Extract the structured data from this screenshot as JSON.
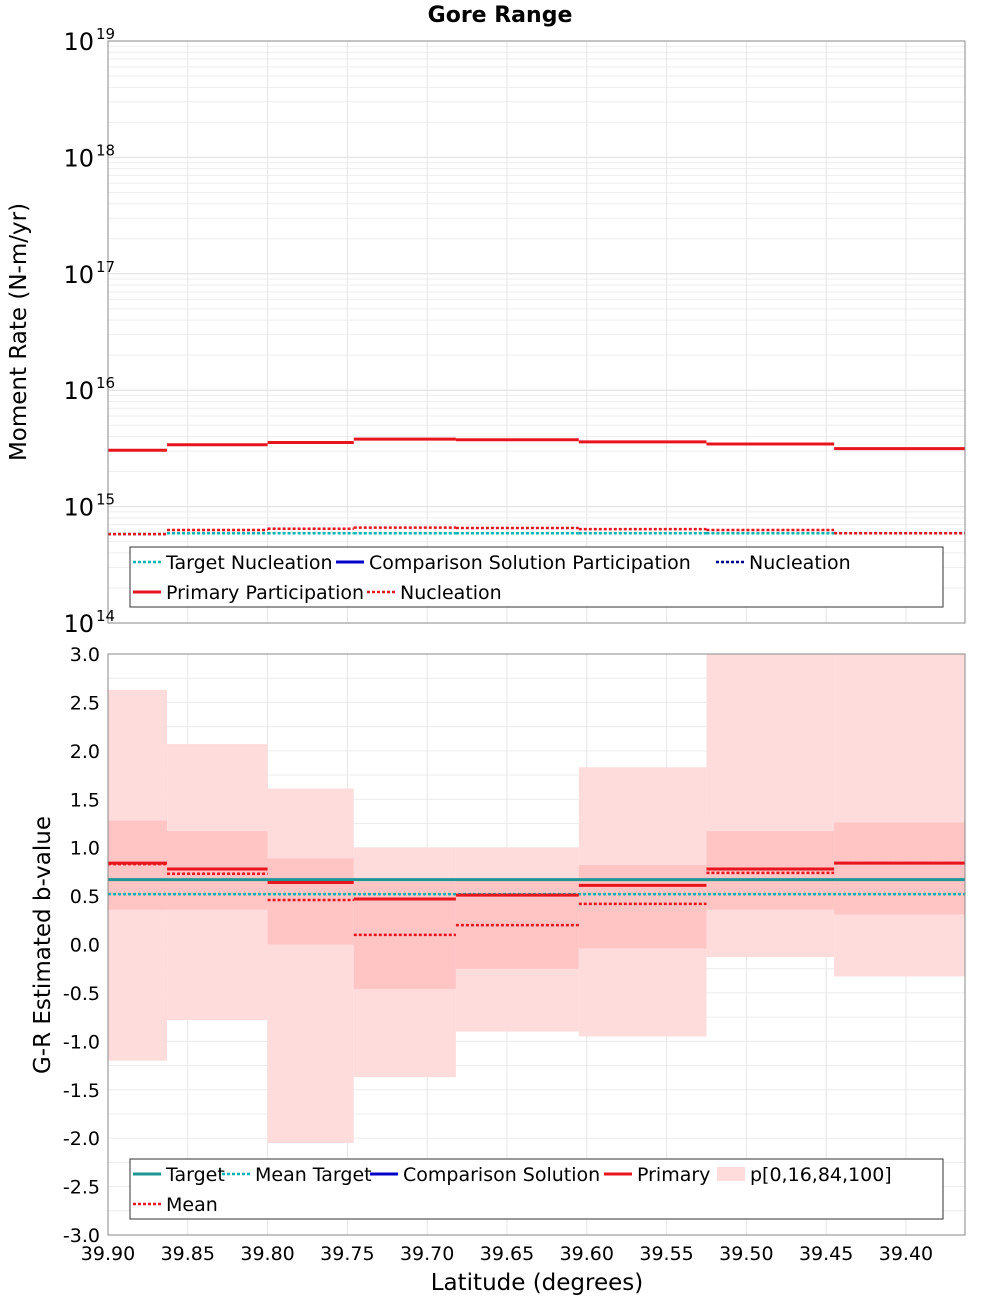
{
  "chart_data": [
    {
      "type": "line",
      "title": "Gore Range",
      "ylabel": "Moment Rate (N-m/yr)",
      "yscale": "log",
      "ylim": [
        100000000000000.0,
        1e+19
      ],
      "xlim": [
        39.9,
        39.363
      ],
      "x_reversed": true,
      "ytick_bases": [
        "10",
        "10",
        "10",
        "10",
        "10",
        "10"
      ],
      "ytick_exponents": [
        "19",
        "18",
        "17",
        "16",
        "15",
        "14"
      ],
      "grid": true,
      "legend_position": "bottom",
      "x_bin_edges": [
        39.9,
        39.863,
        39.8,
        39.746,
        39.682,
        39.605,
        39.525,
        39.445,
        39.363
      ],
      "series": [
        {
          "name": "Target Nucleation",
          "color": "#00b4b4",
          "style": "dotted",
          "values": [
            580000000000000.0,
            590000000000000.0,
            590000000000000.0,
            590000000000000.0,
            590000000000000.0,
            590000000000000.0,
            590000000000000.0,
            590000000000000.0
          ]
        },
        {
          "name": "Comparison Solution Participation",
          "color": "#0000cc",
          "style": "solid",
          "values": []
        },
        {
          "name": "Nucleation",
          "color": "#00008b",
          "style": "dotted",
          "values": []
        },
        {
          "name": "Primary Participation",
          "color": "#e8141e",
          "style": "solid",
          "values": [
            3050000000000000.0,
            3400000000000000.0,
            3550000000000000.0,
            3800000000000000.0,
            3750000000000000.0,
            3600000000000000.0,
            3450000000000000.0,
            3150000000000000.0
          ]
        },
        {
          "name": "Nucleation",
          "color": "#e8141e",
          "style": "dotted",
          "values": [
            580000000000000.0,
            630000000000000.0,
            645000000000000.0,
            660000000000000.0,
            655000000000000.0,
            640000000000000.0,
            630000000000000.0,
            590000000000000.0
          ]
        }
      ]
    },
    {
      "type": "line",
      "xlabel": "Latitude (degrees)",
      "ylabel": "G-R Estimated b-value",
      "ylim": [
        -3.0,
        3.0
      ],
      "xlim": [
        39.9,
        39.363
      ],
      "x_reversed": true,
      "xtick_labels": [
        "39.90",
        "39.85",
        "39.80",
        "39.75",
        "39.70",
        "39.65",
        "39.60",
        "39.55",
        "39.50",
        "39.45",
        "39.40"
      ],
      "xtick_values": [
        39.9,
        39.85,
        39.8,
        39.75,
        39.7,
        39.65,
        39.6,
        39.55,
        39.5,
        39.45,
        39.4
      ],
      "ytick_labels": [
        "3.0",
        "2.5",
        "2.0",
        "1.5",
        "1.0",
        "0.5",
        "0.0",
        "-0.5",
        "-1.0",
        "-1.5",
        "-2.0",
        "-2.5",
        "-3.0"
      ],
      "ytick_values": [
        3.0,
        2.5,
        2.0,
        1.5,
        1.0,
        0.5,
        0.0,
        -0.5,
        -1.0,
        -1.5,
        -2.0,
        -2.5,
        -3.0
      ],
      "grid": true,
      "legend_position": "bottom",
      "x_bin_edges": [
        39.9,
        39.863,
        39.8,
        39.746,
        39.682,
        39.605,
        39.525,
        39.445,
        39.363
      ],
      "series": [
        {
          "name": "Target",
          "color": "#1e9696",
          "style": "solid",
          "constant": 0.67
        },
        {
          "name": "Mean Target",
          "color": "#00b4b4",
          "style": "dotted",
          "constant": 0.52
        },
        {
          "name": "Comparison Solution",
          "color": "#0000cc",
          "style": "solid",
          "values": []
        },
        {
          "name": "Primary",
          "color": "#e8141e",
          "style": "solid",
          "values": [
            0.84,
            0.78,
            0.64,
            0.47,
            0.51,
            0.61,
            0.78,
            0.84
          ]
        },
        {
          "name": "p[0,16,84,100]",
          "color": "#ffb4b4",
          "style": "band",
          "p0": [
            -1.2,
            -0.78,
            -2.05,
            -1.37,
            -0.9,
            -0.95,
            -0.13,
            -0.33
          ],
          "p16": [
            0.36,
            0.36,
            0.0,
            -0.46,
            -0.25,
            -0.04,
            0.36,
            0.31
          ],
          "p84": [
            1.28,
            1.17,
            0.89,
            0.65,
            0.67,
            0.82,
            1.17,
            1.26
          ],
          "p100": [
            2.63,
            2.07,
            1.61,
            1.0,
            1.0,
            1.83,
            3.0,
            3.0
          ]
        },
        {
          "name": "Mean",
          "color": "#e8141e",
          "style": "dotted",
          "values": [
            0.83,
            0.73,
            0.46,
            0.1,
            0.2,
            0.42,
            0.74,
            0.84
          ]
        }
      ]
    }
  ]
}
